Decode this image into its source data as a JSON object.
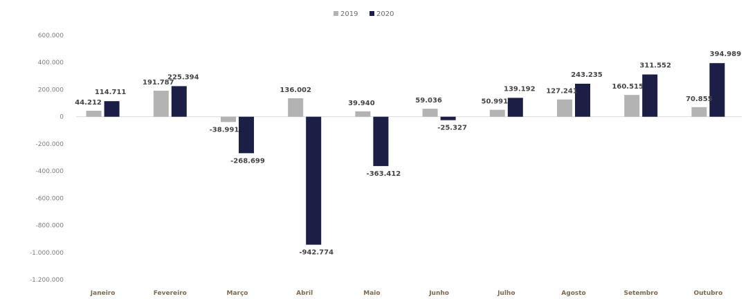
{
  "chart_data": {
    "type": "bar",
    "categories": [
      "Janeiro",
      "Fevereiro",
      "Março",
      "Abril",
      "Maio",
      "Junho",
      "Julho",
      "Agosto",
      "Setembro",
      "Outubro"
    ],
    "series": [
      {
        "name": "2019",
        "color": "#b3b3b3",
        "values": [
          44212,
          191787,
          -38991,
          136002,
          39940,
          59036,
          50991,
          127241,
          160515,
          70855
        ],
        "labels": [
          "44.212",
          "191.787",
          "-38.991",
          "136.002",
          "39.940",
          "59.036",
          "50.991",
          "127.241",
          "160.515",
          "70.855"
        ]
      },
      {
        "name": "2020",
        "color": "#1b1f45",
        "values": [
          114711,
          225394,
          -268699,
          -942774,
          -363412,
          -25327,
          139192,
          243235,
          311552,
          394989
        ],
        "labels": [
          "114.711",
          "225.394",
          "-268.699",
          "-942.774",
          "-363.412",
          "-25.327",
          "139.192",
          "243.235",
          "311.552",
          "394.989"
        ]
      }
    ],
    "yticks": [
      600000,
      400000,
      200000,
      0,
      -200000,
      -400000,
      -600000,
      -800000,
      -1000000,
      -1200000
    ],
    "ytick_labels": [
      "600.000",
      "400.000",
      "200.000",
      "0",
      "-200.000",
      "-400.000",
      "-600.000",
      "-800.000",
      "-1.000.000",
      "-1.200.000"
    ],
    "ylim": [
      -1200000,
      600000
    ],
    "title": "",
    "xlabel": "",
    "ylabel": "",
    "legend_position": "top-center",
    "grid": false,
    "zero_line_color": "#d9d9d9"
  }
}
